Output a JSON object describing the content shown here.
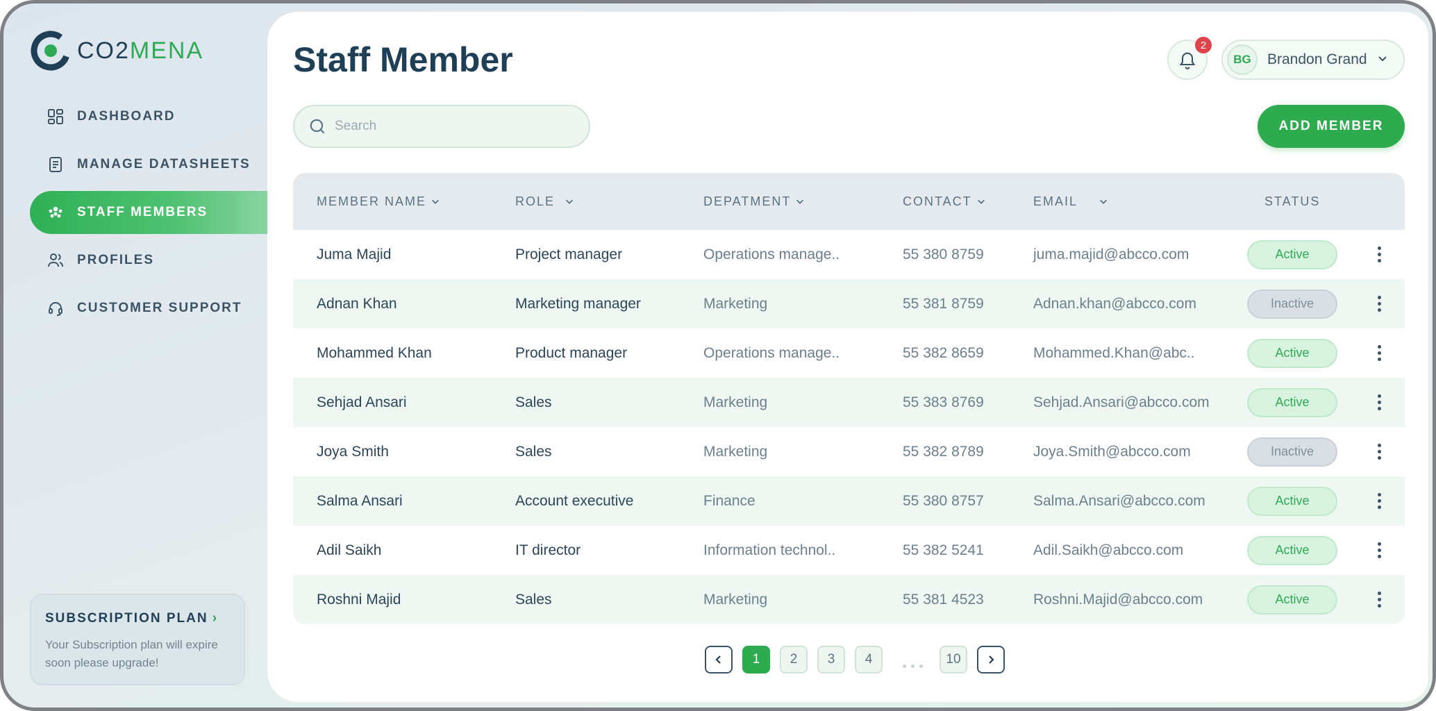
{
  "app": {
    "logo_text_a": "CO2",
    "logo_text_b": "MENA",
    "colors": {
      "accent": "#2eaa4f",
      "navy": "#1f3f57",
      "inactive": "#d9dfe4"
    }
  },
  "sidebar": {
    "items": [
      {
        "label": "DASHBOARD",
        "icon": "dashboard-grid-icon"
      },
      {
        "label": "MANAGE DATASHEETS",
        "icon": "document-icon"
      },
      {
        "label": "STAFF MEMBERS",
        "icon": "team-icon",
        "active": true
      },
      {
        "label": "PROFILES",
        "icon": "users-icon"
      },
      {
        "label": "CUSTOMER SUPPORT",
        "icon": "headset-icon"
      }
    ],
    "subscription": {
      "title": "SUBSCRIPTION PLAN",
      "text": "Your Subscription plan will expire soon please upgrade!"
    }
  },
  "header": {
    "title": "Staff Member",
    "notifications_count": "2",
    "user_initials": "BG",
    "user_name": "Brandon Grand"
  },
  "toolbar": {
    "search_placeholder": "Search",
    "add_label": "ADD MEMBER"
  },
  "table": {
    "columns": [
      "MEMBER NAME",
      "ROLE",
      "DEPATMENT",
      "CONTACT",
      "EMAIL",
      "STATUS"
    ],
    "rows": [
      {
        "name": "Juma Majid",
        "role": "Project manager",
        "dept": "Operations manage..",
        "contact": "55 380 8759",
        "email": "juma.majid@abcco.com",
        "status": "Active"
      },
      {
        "name": "Adnan Khan",
        "role": "Marketing manager",
        "dept": "Marketing",
        "contact": "55 381 8759",
        "email": "Adnan.khan@abcco.com",
        "status": "Inactive"
      },
      {
        "name": "Mohammed Khan",
        "role": "Product manager",
        "dept": "Operations manage..",
        "contact": "55 382 8659",
        "email": "Mohammed.Khan@abc..",
        "status": "Active"
      },
      {
        "name": "Sehjad Ansari",
        "role": "Sales",
        "dept": "Marketing",
        "contact": "55 383 8769",
        "email": "Sehjad.Ansari@abcco.com",
        "status": "Active"
      },
      {
        "name": "Joya Smith",
        "role": "Sales",
        "dept": "Marketing",
        "contact": "55 382 8789",
        "email": "Joya.Smith@abcco.com",
        "status": "Inactive"
      },
      {
        "name": "Salma Ansari",
        "role": "Account executive",
        "dept": "Finance",
        "contact": "55 380 8757",
        "email": "Salma.Ansari@abcco.com",
        "status": "Active"
      },
      {
        "name": "Adil Saikh",
        "role": "IT director",
        "dept": "Information technol..",
        "contact": "55 382 5241",
        "email": "Adil.Saikh@abcco.com",
        "status": "Active"
      },
      {
        "name": "Roshni Majid",
        "role": "Sales",
        "dept": "Marketing",
        "contact": "55 381 4523",
        "email": "Roshni.Majid@abcco.com",
        "status": "Active"
      }
    ]
  },
  "pagination": {
    "pages": [
      "1",
      "2",
      "3",
      "4"
    ],
    "last": "10",
    "current": "1"
  }
}
